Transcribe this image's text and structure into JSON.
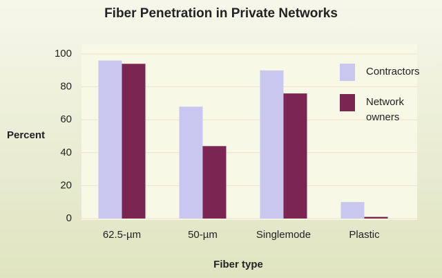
{
  "chart_data": {
    "type": "bar",
    "title": "Fiber Penetration in Private Networks",
    "x_label": "Fiber type",
    "y_label": "Percent",
    "categories": [
      "62.5-µm",
      "50-µm",
      "Singlemode",
      "Plastic"
    ],
    "series": [
      {
        "name": "Contractors",
        "color": "#c9c7ef",
        "values": [
          96,
          68,
          90,
          10
        ]
      },
      {
        "name": "Network owners",
        "color": "#7b2552",
        "values": [
          94,
          44,
          76,
          1
        ]
      }
    ],
    "ylim": [
      0,
      100
    ],
    "yticks": [
      0,
      20,
      40,
      60,
      80,
      100
    ],
    "grid": true,
    "legend": "upper right"
  }
}
